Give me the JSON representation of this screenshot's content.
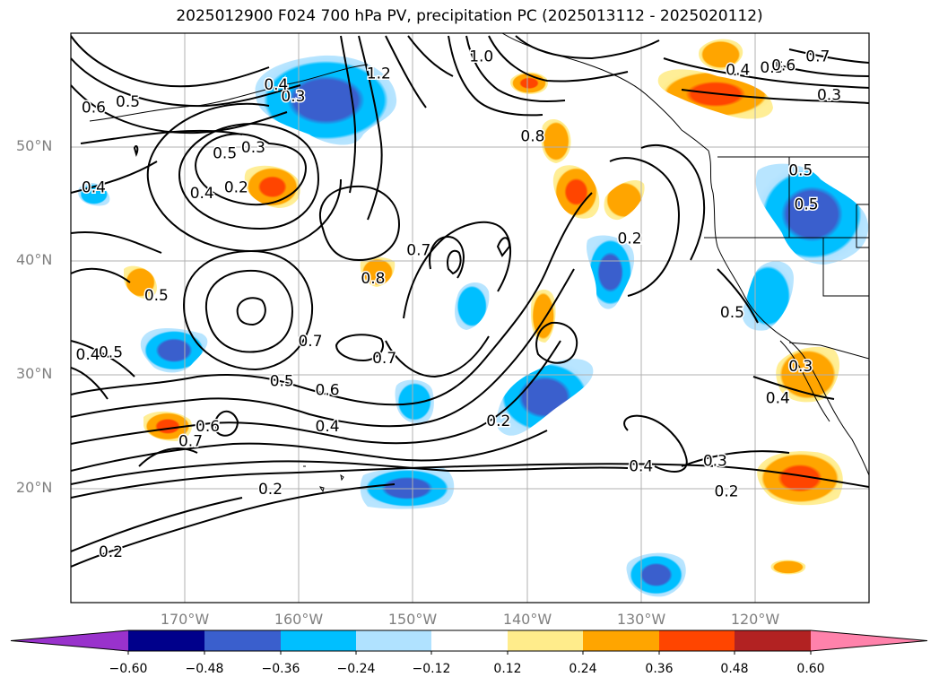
{
  "chart_data": {
    "type": "contour-map",
    "title": "2025012900 F024 700 hPa PV, precipitation PC (2025013112 - 2025020112)",
    "lat_ticks": [
      "50°N",
      "40°N",
      "30°N",
      "20°N"
    ],
    "lat_values": [
      50,
      40,
      30,
      20
    ],
    "lon_ticks": [
      "170°W",
      "160°W",
      "150°W",
      "140°W",
      "130°W",
      "120°W"
    ],
    "lon_values": [
      -170,
      -160,
      -150,
      -140,
      -130,
      -120
    ],
    "extent": {
      "lon_min": -180,
      "lon_max": -110,
      "lat_min": 10,
      "lat_max": 60
    },
    "grid": true,
    "contour_variable": "700 hPa PV",
    "contour_labels": [
      {
        "text": "0.3",
        "lon": -160.5,
        "lat": 54.5
      },
      {
        "text": "0.4",
        "lon": -162,
        "lat": 55.5
      },
      {
        "text": "0.5",
        "lon": -175,
        "lat": 54
      },
      {
        "text": "0.6",
        "lon": -178,
        "lat": 53.5
      },
      {
        "text": "1.2",
        "lon": -153,
        "lat": 56.5
      },
      {
        "text": "1.0",
        "lon": -144,
        "lat": 58
      },
      {
        "text": "0.8",
        "lon": -139.5,
        "lat": 51
      },
      {
        "text": "0.4",
        "lon": -121.5,
        "lat": 56.8
      },
      {
        "text": "0.5",
        "lon": -118.5,
        "lat": 57
      },
      {
        "text": "0.6",
        "lon": -117.5,
        "lat": 57.2
      },
      {
        "text": "0.7",
        "lon": -114.5,
        "lat": 58
      },
      {
        "text": "0.3",
        "lon": -113.5,
        "lat": 54.6
      },
      {
        "text": "0.3",
        "lon": -164,
        "lat": 50
      },
      {
        "text": "0.5",
        "lon": -166.5,
        "lat": 49.5
      },
      {
        "text": "0.4",
        "lon": -168.5,
        "lat": 46
      },
      {
        "text": "0.2",
        "lon": -165.5,
        "lat": 46.5
      },
      {
        "text": "0.4",
        "lon": -178,
        "lat": 46.5
      },
      {
        "text": "0.5",
        "lon": -116,
        "lat": 48
      },
      {
        "text": "0.5",
        "lon": -115.5,
        "lat": 45
      },
      {
        "text": "0.2",
        "lon": -131,
        "lat": 42
      },
      {
        "text": "0.7",
        "lon": -149.5,
        "lat": 41
      },
      {
        "text": "0.8",
        "lon": -153.5,
        "lat": 38.5
      },
      {
        "text": "0.5",
        "lon": -172.5,
        "lat": 37
      },
      {
        "text": "0.7",
        "lon": -159,
        "lat": 33
      },
      {
        "text": "0.7",
        "lon": -152.5,
        "lat": 31.5
      },
      {
        "text": "0.5",
        "lon": -176.5,
        "lat": 32
      },
      {
        "text": "0.4",
        "lon": -178.5,
        "lat": 31.8
      },
      {
        "text": "0.5",
        "lon": -161.5,
        "lat": 29.5
      },
      {
        "text": "0.6",
        "lon": -157.5,
        "lat": 28.7
      },
      {
        "text": "0.6",
        "lon": -168,
        "lat": 25.5
      },
      {
        "text": "0.7",
        "lon": -169.5,
        "lat": 24.2
      },
      {
        "text": "0.4",
        "lon": -157.5,
        "lat": 25.5
      },
      {
        "text": "0.2",
        "lon": -142.5,
        "lat": 26
      },
      {
        "text": "0.5",
        "lon": -122,
        "lat": 35.5
      },
      {
        "text": "0.3",
        "lon": -116,
        "lat": 30.8
      },
      {
        "text": "0.4",
        "lon": -118,
        "lat": 28
      },
      {
        "text": "0.4",
        "lon": -130,
        "lat": 22
      },
      {
        "text": "0.3",
        "lon": -123.5,
        "lat": 22.5
      },
      {
        "text": "0.2",
        "lon": -122.5,
        "lat": 19.8
      },
      {
        "text": "0.2",
        "lon": -162.5,
        "lat": 20
      },
      {
        "text": "0.2",
        "lon": -176.5,
        "lat": 14.5
      }
    ],
    "shading_variable": "precipitation PC",
    "shaded_regions": [
      {
        "name": "Gulf of Alaska negative",
        "sign": "negative",
        "peak": -0.48,
        "lon": -157,
        "lat": 54
      },
      {
        "name": "Pacific NW / Great Basin negative",
        "sign": "negative",
        "peak": -0.48,
        "lon": -116,
        "lat": 43
      },
      {
        "name": "California negative",
        "sign": "negative",
        "peak": -0.36,
        "lon": -121,
        "lat": 36
      },
      {
        "name": "Central Pacific negative 1",
        "sign": "negative",
        "peak": -0.36,
        "lon": -132.5,
        "lat": 40
      },
      {
        "name": "Central Pacific negative 2",
        "sign": "negative",
        "peak": -0.24,
        "lon": -143,
        "lat": 35
      },
      {
        "name": "Subtropical negative band",
        "sign": "negative",
        "peak": -0.48,
        "lon": -140,
        "lat": 28.5
      },
      {
        "name": "Subtropical negative west",
        "sign": "negative",
        "peak": -0.48,
        "lon": -171,
        "lat": 32.5
      },
      {
        "name": "Central Pacific negative 3",
        "sign": "negative",
        "peak": -0.24,
        "lon": -150,
        "lat": 28
      },
      {
        "name": "Hawaii negative",
        "sign": "negative",
        "peak": -0.48,
        "lon": -149,
        "lat": 20
      },
      {
        "name": "Tropical negative",
        "sign": "negative",
        "peak": -0.48,
        "lon": -129,
        "lat": 12.5
      },
      {
        "name": "Aleutian negative small",
        "sign": "negative",
        "peak": -0.24,
        "lon": -179,
        "lat": 46
      },
      {
        "name": "BC coast positive",
        "sign": "positive",
        "peak": 0.48,
        "lon": -123,
        "lat": 57
      },
      {
        "name": "NE Pacific positive",
        "sign": "positive",
        "peak": 0.48,
        "lon": -136,
        "lat": 46
      },
      {
        "name": "Alaska positive",
        "sign": "positive",
        "peak": 0.36,
        "lon": -140,
        "lat": 56.5
      },
      {
        "name": "North Pacific positive",
        "sign": "positive",
        "peak": 0.48,
        "lon": -162,
        "lat": 46.5
      },
      {
        "name": "Central positive",
        "sign": "positive",
        "peak": 0.36,
        "lon": -153,
        "lat": 39
      },
      {
        "name": "Mid positive",
        "sign": "positive",
        "peak": 0.36,
        "lon": -139,
        "lat": 35.5
      },
      {
        "name": "West positive",
        "sign": "positive",
        "peak": 0.24,
        "lon": -174,
        "lat": 37.5
      },
      {
        "name": "Subtropical positive west",
        "sign": "positive",
        "peak": 0.48,
        "lon": -170,
        "lat": 25.5
      },
      {
        "name": "Baja positive",
        "sign": "positive",
        "peak": 0.36,
        "lon": -116,
        "lat": 30.5
      },
      {
        "name": "Mexico positive",
        "sign": "positive",
        "peak": 0.48,
        "lon": -117.5,
        "lat": 21
      },
      {
        "name": "Tropical positive small",
        "sign": "positive",
        "peak": 0.36,
        "lon": -116.5,
        "lat": 13.2
      }
    ],
    "colorbar": {
      "ticks": [
        "−0.60",
        "−0.48",
        "−0.36",
        "−0.24",
        "−0.12",
        "0.12",
        "0.24",
        "0.36",
        "0.48",
        "0.60"
      ],
      "tick_values": [
        -0.6,
        -0.48,
        -0.36,
        -0.24,
        -0.12,
        0.12,
        0.24,
        0.36,
        0.48,
        0.6
      ],
      "colors": [
        "#9932CC",
        "#00008B",
        "#3A5FCD",
        "#00BFFF",
        "#B0E2FF",
        "#FFFFFF",
        "#FFEC8B",
        "#FFA500",
        "#FF4500",
        "#B22222",
        "#FF82AB"
      ],
      "extend": "both"
    }
  }
}
